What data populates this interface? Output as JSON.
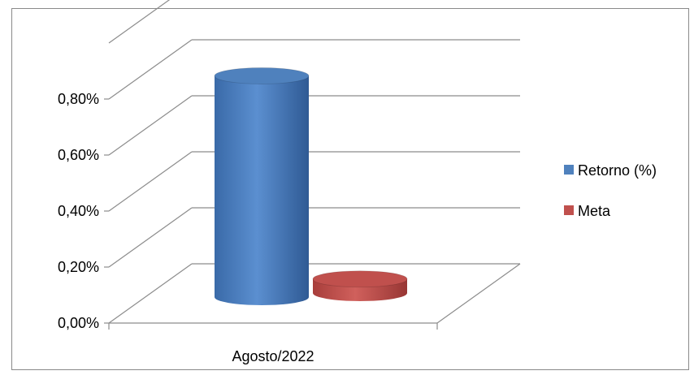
{
  "chart_data": {
    "type": "bar",
    "categories": [
      "Agosto/2022"
    ],
    "series": [
      {
        "name": "Retorno (%)",
        "values": [
          0.79
        ],
        "color": "#4f81bd"
      },
      {
        "name": "Meta",
        "values": [
          0.05
        ],
        "color": "#c0504d"
      }
    ],
    "yticks": [
      "0,00%",
      "0,20%",
      "0,40%",
      "0,60%",
      "0,80%"
    ],
    "ylim": [
      0,
      1.0
    ],
    "grid": true,
    "legend_position": "right",
    "style": "3d-cylinder"
  }
}
